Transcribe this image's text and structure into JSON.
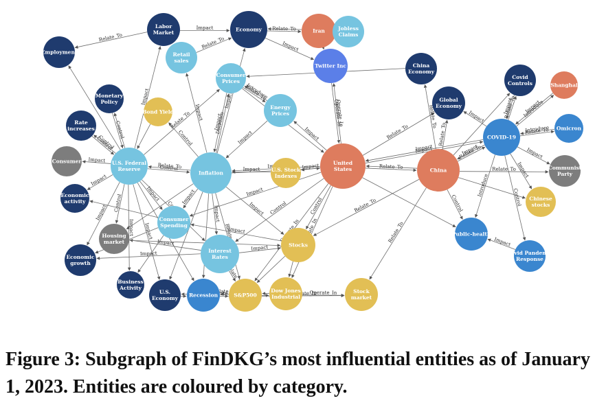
{
  "caption": "Figure 3: Subgraph of FinDKG’s most influential entities as of January 1, 2023. Entities are coloured by category.",
  "colors": {
    "navy": "#1f3b6e",
    "light_blue": "#76c4e0",
    "mid_blue": "#3a86cf",
    "salmon": "#de7c5e",
    "yellow": "#e2bf55",
    "gray": "#7d7d7d",
    "twitter_blue": "#5b7fe8"
  },
  "nodes": [
    {
      "id": "labor",
      "label": "Labor Market",
      "color": "navy"
    },
    {
      "id": "economy",
      "label": "Economy",
      "color": "navy"
    },
    {
      "id": "iran",
      "label": "Iran",
      "color": "salmon"
    },
    {
      "id": "jobless",
      "label": "Jobless Claims",
      "color": "light_blue"
    },
    {
      "id": "employment",
      "label": "Employment",
      "color": "navy"
    },
    {
      "id": "retail",
      "label": "Retail sales",
      "color": "light_blue"
    },
    {
      "id": "cprices",
      "label": "Consumer Prices",
      "color": "light_blue"
    },
    {
      "id": "twitter",
      "label": "Twitter Inc",
      "color": "twitter_blue"
    },
    {
      "id": "chinaecon",
      "label": "China Economy",
      "color": "navy"
    },
    {
      "id": "covidctrl",
      "label": "Covid Controls",
      "color": "navy"
    },
    {
      "id": "shanghai",
      "label": "Shanghai",
      "color": "salmon"
    },
    {
      "id": "monpol",
      "label": "Monetary Policy",
      "color": "navy"
    },
    {
      "id": "bond",
      "label": "Bond Yield",
      "color": "yellow"
    },
    {
      "id": "energy",
      "label": "Energy Prices",
      "color": "light_blue"
    },
    {
      "id": "globalecon",
      "label": "Global Economy",
      "color": "navy"
    },
    {
      "id": "rateinc",
      "label": "Rate increases",
      "color": "navy"
    },
    {
      "id": "covid19",
      "label": "COVID-19",
      "color": "mid_blue"
    },
    {
      "id": "omicron",
      "label": "Omicron",
      "color": "mid_blue"
    },
    {
      "id": "consumer",
      "label": "Consumer",
      "color": "gray"
    },
    {
      "id": "fed",
      "label": "U.S. Federal Reserve",
      "color": "light_blue"
    },
    {
      "id": "inflation",
      "label": "Inflation",
      "color": "light_blue"
    },
    {
      "id": "usindex",
      "label": "U.S. Stock Indexes",
      "color": "yellow"
    },
    {
      "id": "us",
      "label": "United States",
      "color": "salmon"
    },
    {
      "id": "china",
      "label": "China",
      "color": "salmon"
    },
    {
      "id": "communist",
      "label": "Communist Party",
      "color": "gray"
    },
    {
      "id": "econact",
      "label": "Economic activity",
      "color": "navy"
    },
    {
      "id": "chstocks",
      "label": "Chinese stocks",
      "color": "yellow"
    },
    {
      "id": "cspending",
      "label": "Consumer Spending",
      "color": "light_blue"
    },
    {
      "id": "housing",
      "label": "Housing market",
      "color": "gray"
    },
    {
      "id": "publichealth",
      "label": "Public-health",
      "color": "mid_blue"
    },
    {
      "id": "econgrowth",
      "label": "Economic growth",
      "color": "navy"
    },
    {
      "id": "irates",
      "label": "Interest Rates",
      "color": "light_blue"
    },
    {
      "id": "stocks",
      "label": "Stocks",
      "color": "yellow"
    },
    {
      "id": "covidresp",
      "label": "Covid Pandemic Response",
      "color": "mid_blue"
    },
    {
      "id": "busact",
      "label": "Business Activity",
      "color": "navy"
    },
    {
      "id": "useconomy",
      "label": "U.S. Economy",
      "color": "navy"
    },
    {
      "id": "recession",
      "label": "Recession",
      "color": "mid_blue"
    },
    {
      "id": "sp500",
      "label": "S&P500",
      "color": "yellow"
    },
    {
      "id": "dowjones",
      "label": "Dow Jones Industrial",
      "color": "yellow"
    },
    {
      "id": "stockmarket",
      "label": "Stock market",
      "color": "yellow"
    }
  ],
  "edges": [
    {
      "from": "labor",
      "to": "employment",
      "label": "Relate_To"
    },
    {
      "from": "labor",
      "to": "economy",
      "label": "Impact"
    },
    {
      "from": "economy",
      "to": "iran",
      "label": "Relate_To"
    },
    {
      "from": "iran",
      "to": "economy",
      "label": ""
    },
    {
      "from": "retail",
      "to": "economy",
      "label": "Relate_To"
    },
    {
      "from": "economy",
      "to": "twitter",
      "label": "Impact"
    },
    {
      "from": "iran",
      "to": "twitter",
      "label": ""
    },
    {
      "from": "chinaecon",
      "to": "cprices",
      "label": ""
    },
    {
      "from": "twitter",
      "to": "us",
      "label": "Operate_In"
    },
    {
      "from": "us",
      "to": "twitter",
      "label": "Operate_In"
    },
    {
      "from": "cprices",
      "to": "us",
      "label": ""
    },
    {
      "from": "cprices",
      "to": "energy",
      "label": "Relate_To"
    },
    {
      "from": "energy",
      "to": "cprices",
      "label": "Introduce"
    },
    {
      "from": "monpol",
      "to": "fed",
      "label": "Control"
    },
    {
      "from": "bond",
      "to": "fed",
      "label": ""
    },
    {
      "from": "rateinc",
      "to": "fed",
      "label": "Control"
    },
    {
      "from": "fed",
      "to": "employment",
      "label": ""
    },
    {
      "from": "fed",
      "to": "labor",
      "label": "Impact"
    },
    {
      "from": "fed",
      "to": "consumer",
      "label": "Impact"
    },
    {
      "from": "fed",
      "to": "econact",
      "label": "Impact"
    },
    {
      "from": "fed",
      "to": "econgrowth",
      "label": "Impact"
    },
    {
      "from": "fed",
      "to": "housing",
      "label": "Control"
    },
    {
      "from": "fed",
      "to": "inflation",
      "label": "Control"
    },
    {
      "from": "inflation",
      "to": "fed",
      "label": "Relate_To"
    },
    {
      "from": "fed",
      "to": "monpol",
      "label": ""
    },
    {
      "from": "fed",
      "to": "rateinc",
      "label": "Control"
    },
    {
      "from": "fed",
      "to": "useconomy",
      "label": "Impact"
    },
    {
      "from": "fed",
      "to": "busact",
      "label": "Impact"
    },
    {
      "from": "fed",
      "to": "irates",
      "label": "Control"
    },
    {
      "from": "fed",
      "to": "cspending",
      "label": "Impact"
    },
    {
      "from": "fed",
      "to": "recession",
      "label": ""
    },
    {
      "from": "fed",
      "to": "cprices",
      "label": "Relate_To"
    },
    {
      "from": "inflation",
      "to": "economy",
      "label": "Impact"
    },
    {
      "from": "inflation",
      "to": "cprices",
      "label": "Decrease"
    },
    {
      "from": "cprices",
      "to": "inflation",
      "label": "Impact"
    },
    {
      "from": "inflation",
      "to": "retail",
      "label": "Impact"
    },
    {
      "from": "inflation",
      "to": "bond",
      "label": "Control"
    },
    {
      "from": "energy",
      "to": "inflation",
      "label": "Impact"
    },
    {
      "from": "us",
      "to": "inflation",
      "label": "Impact"
    },
    {
      "from": "inflation",
      "to": "us",
      "label": ""
    },
    {
      "from": "us",
      "to": "usindex",
      "label": "Impact"
    },
    {
      "from": "inflation",
      "to": "cspending",
      "label": "Impact"
    },
    {
      "from": "inflation",
      "to": "irates",
      "label": "Impact"
    },
    {
      "from": "inflation",
      "to": "housing",
      "label": ""
    },
    {
      "from": "inflation",
      "to": "stocks",
      "label": "Impact"
    },
    {
      "from": "inflation",
      "to": "recession",
      "label": ""
    },
    {
      "from": "inflation",
      "to": "useconomy",
      "label": ""
    },
    {
      "from": "inflation",
      "to": "sp500",
      "label": "Relate_To"
    },
    {
      "from": "us",
      "to": "china",
      "label": "Relate_To"
    },
    {
      "from": "china",
      "to": "us",
      "label": ""
    },
    {
      "from": "us",
      "to": "globalecon",
      "label": "Relate_To"
    },
    {
      "from": "us",
      "to": "covid19",
      "label": "Impact"
    },
    {
      "from": "covid19",
      "to": "us",
      "label": "Impact"
    },
    {
      "from": "us",
      "to": "energy",
      "label": "Impact"
    },
    {
      "from": "us",
      "to": "stocks",
      "label": "Control"
    },
    {
      "from": "us",
      "to": "dowjones",
      "label": "Operate_In"
    },
    {
      "from": "us",
      "to": "sp500",
      "label": "Operate_In"
    },
    {
      "from": "us",
      "to": "irates",
      "label": "Control"
    },
    {
      "from": "us",
      "to": "cspending",
      "label": "Impact"
    },
    {
      "from": "us",
      "to": "publichealth",
      "label": ""
    },
    {
      "from": "china",
      "to": "stockmarket",
      "label": "Relate_To"
    },
    {
      "from": "china",
      "to": "stocks",
      "label": "Relate_To"
    },
    {
      "from": "china",
      "to": "publichealth",
      "label": "Control"
    },
    {
      "from": "china",
      "to": "chinaecon",
      "label": "Relate_To"
    },
    {
      "from": "china",
      "to": "globalecon",
      "label": "Relate_To"
    },
    {
      "from": "china",
      "to": "covidctrl",
      "label": ""
    },
    {
      "from": "china",
      "to": "chstocks",
      "label": ""
    },
    {
      "from": "china",
      "to": "communist",
      "label": "Relate_To"
    },
    {
      "from": "china",
      "to": "covid19",
      "label": "Relate_To"
    },
    {
      "from": "covid19",
      "to": "china",
      "label": "Impact"
    },
    {
      "from": "covid19",
      "to": "covidctrl",
      "label": "Relate_To"
    },
    {
      "from": "covidctrl",
      "to": "covid19",
      "label": "Impact"
    },
    {
      "from": "covid19",
      "to": "shanghai",
      "label": "Introduce"
    },
    {
      "from": "shanghai",
      "to": "covid19",
      "label": "Impact"
    },
    {
      "from": "covid19",
      "to": "omicron",
      "label": "Relate_To"
    },
    {
      "from": "omicron",
      "to": "covid19",
      "label": "Introduce"
    },
    {
      "from": "covid19",
      "to": "communist",
      "label": "Impact"
    },
    {
      "from": "covid19",
      "to": "chstocks",
      "label": "Impact"
    },
    {
      "from": "covid19",
      "to": "publichealth",
      "label": "Introduce"
    },
    {
      "from": "covid19",
      "to": "covidresp",
      "label": "Control"
    },
    {
      "from": "covid19",
      "to": "globalecon",
      "label": "Impact"
    },
    {
      "from": "covidresp",
      "to": "publichealth",
      "label": "Impact"
    },
    {
      "from": "usindex",
      "to": "inflation",
      "label": "Impact"
    },
    {
      "from": "stocks",
      "to": "cspending",
      "label": "Impact"
    },
    {
      "from": "stocks",
      "to": "sp500",
      "label": ""
    },
    {
      "from": "stocks",
      "to": "dowjones",
      "label": ""
    },
    {
      "from": "irates",
      "to": "stocks",
      "label": "Impact"
    },
    {
      "from": "irates",
      "to": "housing",
      "label": "Impact"
    },
    {
      "from": "irates",
      "to": "sp500",
      "label": "Relate_To"
    },
    {
      "from": "irates",
      "to": "econgrowth",
      "label": "Impact"
    },
    {
      "from": "cspending",
      "to": "econgrowth",
      "label": ""
    },
    {
      "from": "cspending",
      "to": "econact",
      "label": ""
    },
    {
      "from": "cspending",
      "to": "busact",
      "label": ""
    },
    {
      "from": "recession",
      "to": "useconomy",
      "label": ""
    },
    {
      "from": "useconomy",
      "to": "recession",
      "label": ""
    },
    {
      "from": "recession",
      "to": "sp500",
      "label": "Relate_To"
    },
    {
      "from": "sp500",
      "to": "recession",
      "label": "Relate_To"
    },
    {
      "from": "sp500",
      "to": "dowjones",
      "label": ""
    },
    {
      "from": "dowjones",
      "to": "sp500",
      "label": ""
    },
    {
      "from": "dowjones",
      "to": "stockmarket",
      "label": "Operate_In"
    },
    {
      "from": "sp500",
      "to": "stockmarket",
      "label": "Operate_In"
    },
    {
      "from": "housing",
      "to": "stocks",
      "label": ""
    }
  ]
}
